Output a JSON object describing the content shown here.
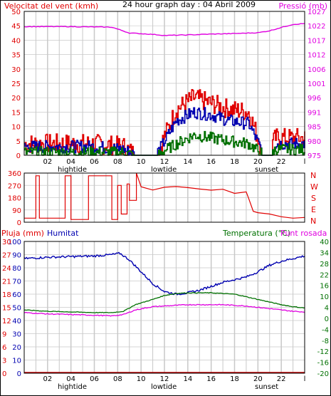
{
  "colors": {
    "red": "#e00000",
    "magenta": "#e000e0",
    "blue": "#0000b0",
    "green": "#007000",
    "darkred": "#c00000",
    "grid": "#c8c8c8",
    "border": "#000000"
  },
  "labels": {
    "vent_title": "Velocitat del vent (kmh)",
    "center_title": "24 hour graph day : 04 Abril 2009",
    "pressio_title": "Pressió (mb)",
    "pluja_title": "Pluja (mm)",
    "humitat_title": "Humitat",
    "temp_title": "Temperatura (°C)",
    "rosada_title": "Punt rosada",
    "hightide": "hightide",
    "lowtide": "lowtide",
    "sunset": "sunset",
    "dir_N1": "N",
    "dir_W": "W",
    "dir_S": "S",
    "dir_E": "E",
    "dir_N2": "N"
  },
  "chart_data": [
    {
      "type": "line",
      "title": "24 hour graph day : 04 Abril 2009",
      "x_ticks": [
        "02",
        "04",
        "06",
        "08",
        "10",
        "12",
        "14",
        "16",
        "18",
        "20",
        "22",
        "l"
      ],
      "y_left_label": "Velocitat del vent (kmh)",
      "y_left_ticks": [
        0,
        5,
        10,
        15,
        20,
        25,
        30,
        35,
        40,
        45,
        50
      ],
      "y_left_lim": [
        0,
        50
      ],
      "y_right_label": "Pressió (mb)",
      "y_right_ticks": [
        975,
        980,
        985,
        991,
        996,
        1001,
        1006,
        1012,
        1017,
        1022,
        1027
      ],
      "y_right_lim": [
        975,
        1027
      ],
      "x_lim": [
        0,
        24
      ],
      "pressure_series": {
        "x": [
          0,
          4,
          7.5,
          9,
          11,
          12,
          14,
          16,
          18,
          20,
          21,
          22,
          23,
          24
        ],
        "values": [
          1021.5,
          1021.5,
          1021.3,
          1019.2,
          1018.7,
          1018.3,
          1018.5,
          1018.8,
          1019.0,
          1019.3,
          1020.0,
          1021.2,
          1022.3,
          1022.6
        ]
      },
      "wind_max_profile": {
        "x": [
          0,
          3,
          6,
          8.5,
          9.5,
          11.5,
          13,
          14.5,
          16,
          17.5,
          19.2,
          20.5,
          21.5,
          24
        ],
        "values": [
          4,
          4,
          4,
          3,
          0,
          2,
          16,
          20,
          18,
          16,
          15,
          0,
          6,
          6
        ]
      },
      "wind_avg_profile": {
        "x": [
          0,
          3,
          6,
          8.5,
          9.5,
          11.5,
          13,
          14.5,
          16,
          17.5,
          19.2,
          20.5,
          21.5,
          24
        ],
        "values": [
          3,
          3,
          3,
          2,
          0,
          1.5,
          12,
          15,
          14,
          12,
          11,
          0,
          4,
          4
        ]
      },
      "wind_min_profile": {
        "x": [
          0,
          3,
          6,
          8.5,
          9.5,
          11.5,
          13,
          14.5,
          16,
          17.5,
          19.2,
          20.5,
          21.5,
          24
        ],
        "values": [
          1,
          1,
          1,
          1,
          0,
          0.5,
          4,
          7,
          6,
          5,
          4,
          0,
          2,
          2
        ]
      },
      "annotations": [
        "hightide",
        "lowtide",
        "sunset"
      ]
    },
    {
      "type": "line",
      "title": "",
      "y_left_ticks": [
        0,
        90,
        180,
        270,
        360
      ],
      "y_lim": [
        0,
        360
      ],
      "direction_labels": [
        "N",
        "W",
        "S",
        "E",
        "N"
      ],
      "x_lim": [
        0,
        24
      ],
      "direction_series": {
        "x": [
          0,
          1.0,
          1.0,
          1.3,
          1.3,
          3.5,
          3.5,
          4.0,
          4.0,
          5.5,
          5.5,
          7.5,
          7.5,
          8.0,
          8.0,
          8.3,
          8.3,
          8.8,
          8.8,
          9.0,
          9.0,
          9.6,
          9.6,
          10.0,
          11,
          12,
          13,
          14,
          15,
          16,
          17,
          18,
          19,
          19.2,
          19.6,
          20,
          21,
          22,
          23,
          24
        ],
        "values": [
          30,
          30,
          340,
          340,
          30,
          30,
          340,
          340,
          20,
          20,
          340,
          340,
          20,
          20,
          270,
          270,
          60,
          60,
          280,
          280,
          160,
          160,
          360,
          260,
          240,
          250,
          260,
          250,
          240,
          230,
          235,
          215,
          220,
          180,
          80,
          70,
          60,
          40,
          30,
          35
        ]
      }
    },
    {
      "type": "line",
      "title": "",
      "x_ticks": [
        "02",
        "04",
        "06",
        "08",
        "10",
        "12",
        "14",
        "16",
        "18",
        "20",
        "22",
        "l"
      ],
      "y_left_label": "Pluja (mm)",
      "y_left2_label": "Humitat",
      "y_right_label": "Temperatura (°C)",
      "y_right2_label": "Punt rosada",
      "pluja_ticks": [
        0,
        3,
        6,
        9,
        12,
        15,
        18,
        21,
        24,
        27,
        30
      ],
      "humitat_ticks": [
        0,
        10,
        20,
        30,
        40,
        50,
        60,
        70,
        80,
        90,
        100
      ],
      "temp_ticks": [
        -20,
        -16,
        -12,
        -8,
        -4,
        0,
        4,
        10,
        16,
        22,
        28,
        34,
        40
      ],
      "x_lim": [
        0,
        24
      ],
      "humidity_series": {
        "x": [
          0,
          2,
          4,
          6,
          7.5,
          8.2,
          9,
          10,
          11,
          12,
          13,
          14,
          15,
          16,
          17,
          18,
          19,
          20,
          21,
          22,
          23,
          24
        ],
        "values": [
          87,
          88,
          88.5,
          89,
          90,
          91,
          86,
          77,
          68,
          62,
          60,
          61,
          63,
          66,
          69,
          71,
          73,
          77,
          82,
          85,
          87,
          89
        ]
      },
      "temperature_series": {
        "x": [
          0,
          2,
          4,
          6,
          7.5,
          8.5,
          9.5,
          11,
          12,
          13,
          14,
          15,
          16,
          17,
          18,
          19,
          20,
          21,
          22,
          23,
          24
        ],
        "values": [
          48,
          47,
          46.5,
          46,
          46,
          47,
          52,
          56,
          59,
          60.5,
          61,
          61,
          61,
          60.5,
          60,
          58,
          56,
          54,
          52,
          50.5,
          49.5
        ]
      },
      "dewpoint_series": {
        "x": [
          0,
          2,
          4,
          6,
          7.5,
          8.5,
          9.5,
          11,
          12,
          13,
          14,
          15,
          16,
          17,
          18,
          19,
          20,
          21,
          22,
          23,
          24
        ],
        "values": [
          46,
          45,
          44.5,
          44,
          43.5,
          44.5,
          48,
          50.5,
          51,
          51.5,
          52,
          52,
          52,
          52,
          51.5,
          51,
          50,
          49,
          48,
          47,
          46.5
        ]
      },
      "rain_series": {
        "x": [
          0,
          24
        ],
        "values": [
          0,
          0
        ]
      },
      "annotations": [
        "hightide",
        "lowtide",
        "sunset"
      ]
    }
  ]
}
